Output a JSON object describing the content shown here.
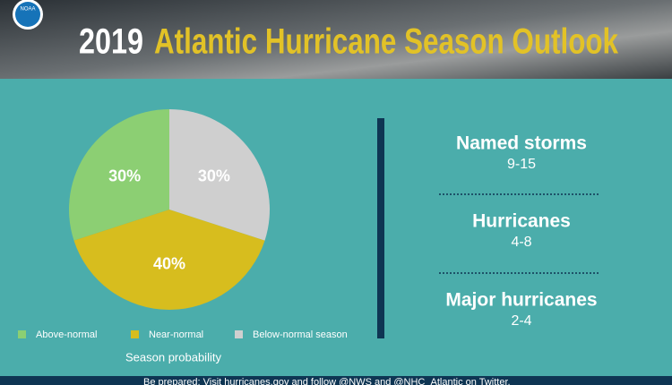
{
  "logo_text": "NOAA",
  "header": {
    "year": "2019",
    "title": "Atlantic Hurricane Season Outlook"
  },
  "chart_data": {
    "type": "pie",
    "categories": [
      "Above-normal",
      "Near-normal",
      "Below-normal season"
    ],
    "values": [
      30,
      40,
      30
    ],
    "value_labels": [
      "30%",
      "40%",
      "30%"
    ],
    "colors": [
      "#8ccf73",
      "#d7bd1e",
      "#cfcfcf"
    ],
    "caption": "Season probability"
  },
  "stats": [
    {
      "label": "Named storms",
      "value": "9-15"
    },
    {
      "label": "Hurricanes",
      "value": "4-8"
    },
    {
      "label": "Major hurricanes",
      "value": "2-4"
    }
  ],
  "footer": "Be prepared: Visit hurricanes.gov and follow @NWS and @NHC_Atlantic on Twitter."
}
